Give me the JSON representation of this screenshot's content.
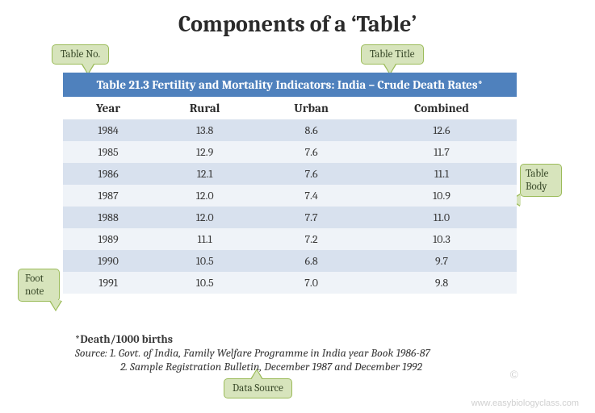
{
  "title": "Components of a ‘Table’",
  "callouts": {
    "table_no": "Table No.",
    "table_title": "Table  Title",
    "table_body": "Table Body",
    "foot_note": "Foot note",
    "data_source": "Data Source"
  },
  "table": {
    "heading": "Table 21.3 Fertility and Mortality Indicators: India – Crude Death Rates*",
    "columns": [
      "Year",
      "Rural",
      "Urban",
      "Combined"
    ],
    "rows": [
      [
        "1984",
        "13.8",
        "8.6",
        "12.6"
      ],
      [
        "1985",
        "12.9",
        "7.6",
        "11.7"
      ],
      [
        "1986",
        "12.1",
        "7.6",
        "11.1"
      ],
      [
        "1987",
        "12.0",
        "7.4",
        "10.9"
      ],
      [
        "1988",
        "12.0",
        "7.7",
        "11.0"
      ],
      [
        "1989",
        "11.1",
        "7.2",
        "10.3"
      ],
      [
        "1990",
        "10.5",
        "6.8",
        "9.7"
      ],
      [
        "1991",
        "10.5",
        "7.0",
        "9.8"
      ]
    ],
    "row_stripe_colors": {
      "odd": "#d8e1ee",
      "even": "#eff3f8"
    },
    "header_bg": "#4f81bd",
    "header_color": "#ffffff"
  },
  "footnote": {
    "label": "*Death/1000 births",
    "source1": "Source: 1. Govt. of India, Family Welfare Programme in India year Book 1986-87",
    "source2": "2. Sample Registration Bulletin, December 1987 and December 1992"
  },
  "colors": {
    "callout_fill": "#d7e4bc",
    "callout_border": "#9bbb59",
    "text": "#3a3a3a"
  },
  "watermark": "www.easybiologyclass.com",
  "copyright": "©"
}
